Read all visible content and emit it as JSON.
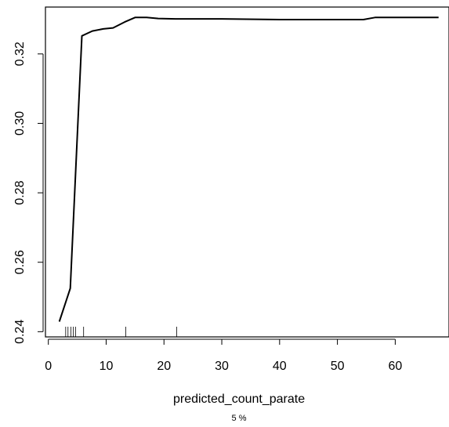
{
  "chart_data": {
    "type": "line",
    "title": "",
    "xlabel": "predicted_count_parate",
    "ylabel": "",
    "subtitle": "5 %",
    "xlim": [
      -0.5,
      69.3
    ],
    "ylim": [
      0.2385,
      0.3335
    ],
    "x_ticks": [
      0,
      10,
      20,
      30,
      40,
      50,
      60
    ],
    "y_ticks": [
      0.24,
      0.26,
      0.28,
      0.3,
      0.32
    ],
    "x_tick_labels": [
      "0",
      "10",
      "20",
      "30",
      "40",
      "50",
      "60"
    ],
    "y_tick_labels": [
      "0.24",
      "0.26",
      "0.28",
      "0.30",
      "0.32"
    ],
    "grid": false,
    "series": [
      {
        "color": "#000000",
        "points": [
          [
            1.9,
            0.2429
          ],
          [
            3.8,
            0.2525
          ],
          [
            5.8,
            0.3252
          ],
          [
            7.6,
            0.3266
          ],
          [
            9.5,
            0.3272
          ],
          [
            11.2,
            0.3275
          ],
          [
            13.2,
            0.3292
          ],
          [
            15.0,
            0.3305
          ],
          [
            17.0,
            0.3305
          ],
          [
            19.0,
            0.3302
          ],
          [
            22.0,
            0.3301
          ],
          [
            30.0,
            0.3301
          ],
          [
            40.0,
            0.3299
          ],
          [
            54.5,
            0.3299
          ],
          [
            56.5,
            0.3305
          ],
          [
            67.5,
            0.3305
          ]
        ]
      }
    ],
    "rug": [
      3.0,
      3.4,
      3.9,
      4.3,
      4.7,
      6.1,
      13.4,
      22.2
    ]
  }
}
